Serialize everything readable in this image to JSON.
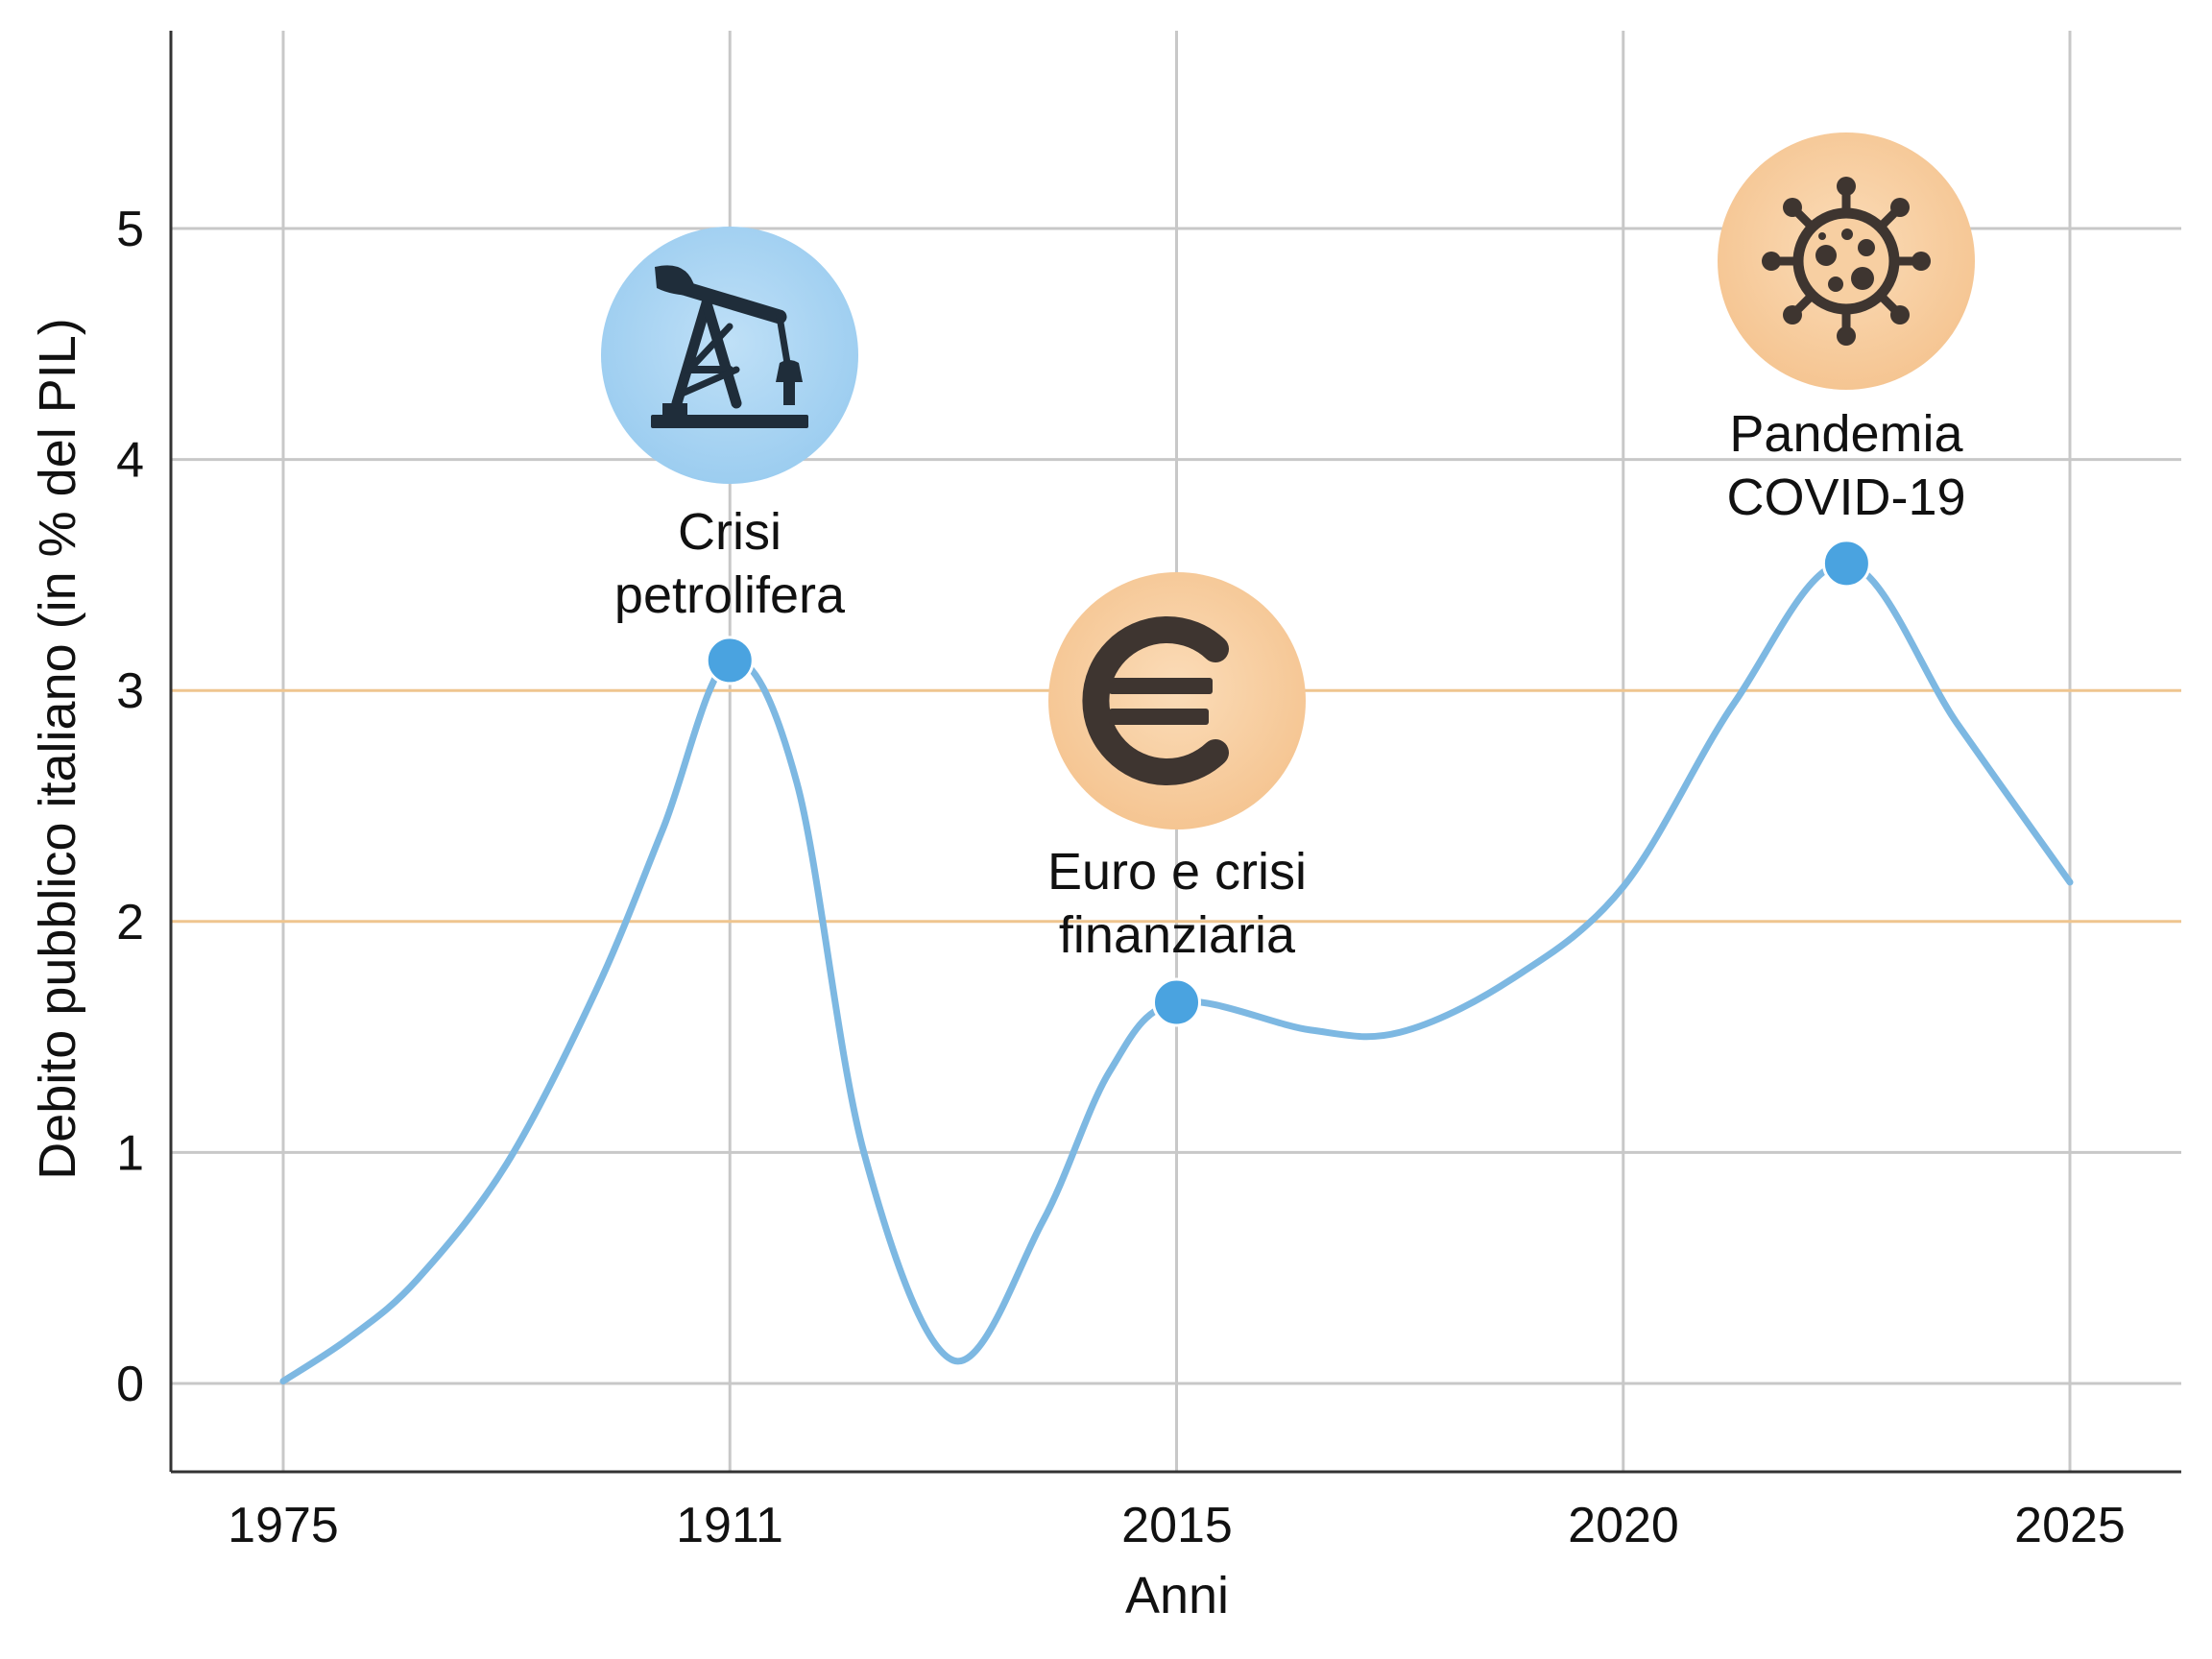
{
  "chart_data": {
    "type": "line",
    "xlabel": "Anni",
    "ylabel": "Debito pubblico italiano (in % del PIL)",
    "x_tick_labels": [
      "1975",
      "1911",
      "2015",
      "2020",
      "2025"
    ],
    "y_ticks": [
      0,
      1,
      2,
      3,
      4,
      5
    ],
    "ylim": [
      -0.38,
      5.85
    ],
    "grid": true,
    "highlighted_gridlines": [
      2,
      3
    ],
    "colors": {
      "line": "#7db8e2",
      "marker": "#4aa3e0",
      "grid": "#c8c8c8",
      "highlight_grid": "#efc58f",
      "axis": "#333333"
    },
    "series": [
      {
        "points": [
          [
            0,
            0.01
          ],
          [
            0.15,
            0.2
          ],
          [
            0.3,
            0.45
          ],
          [
            0.5,
            0.95
          ],
          [
            0.7,
            1.7
          ],
          [
            0.85,
            2.4
          ],
          [
            1.0,
            3.13
          ],
          [
            1.15,
            2.6
          ],
          [
            1.3,
            1.0
          ],
          [
            1.5,
            0.1
          ],
          [
            1.7,
            0.7
          ],
          [
            1.85,
            1.35
          ],
          [
            2.0,
            1.65
          ],
          [
            2.3,
            1.53
          ],
          [
            2.5,
            1.52
          ],
          [
            2.75,
            1.75
          ],
          [
            3.0,
            2.15
          ],
          [
            3.25,
            2.95
          ],
          [
            3.5,
            3.55
          ],
          [
            3.75,
            2.85
          ],
          [
            4.0,
            2.17
          ]
        ]
      }
    ],
    "annotations": [
      {
        "label_lines": [
          "Crisi",
          "petrolifera"
        ],
        "x": 1.0,
        "y": 3.13,
        "icon": "oil-pump-icon",
        "badge_color": "#a9d3f0"
      },
      {
        "label_lines": [
          "Euro e crisi",
          "finanziaria"
        ],
        "x": 2.0,
        "y": 1.65,
        "icon": "euro-icon",
        "badge_color": "#f7cfa2"
      },
      {
        "label_lines": [
          "Pandemia",
          "COVID-19"
        ],
        "x": 3.5,
        "y": 3.55,
        "icon": "virus-icon",
        "badge_color": "#f7cfa2"
      }
    ]
  }
}
